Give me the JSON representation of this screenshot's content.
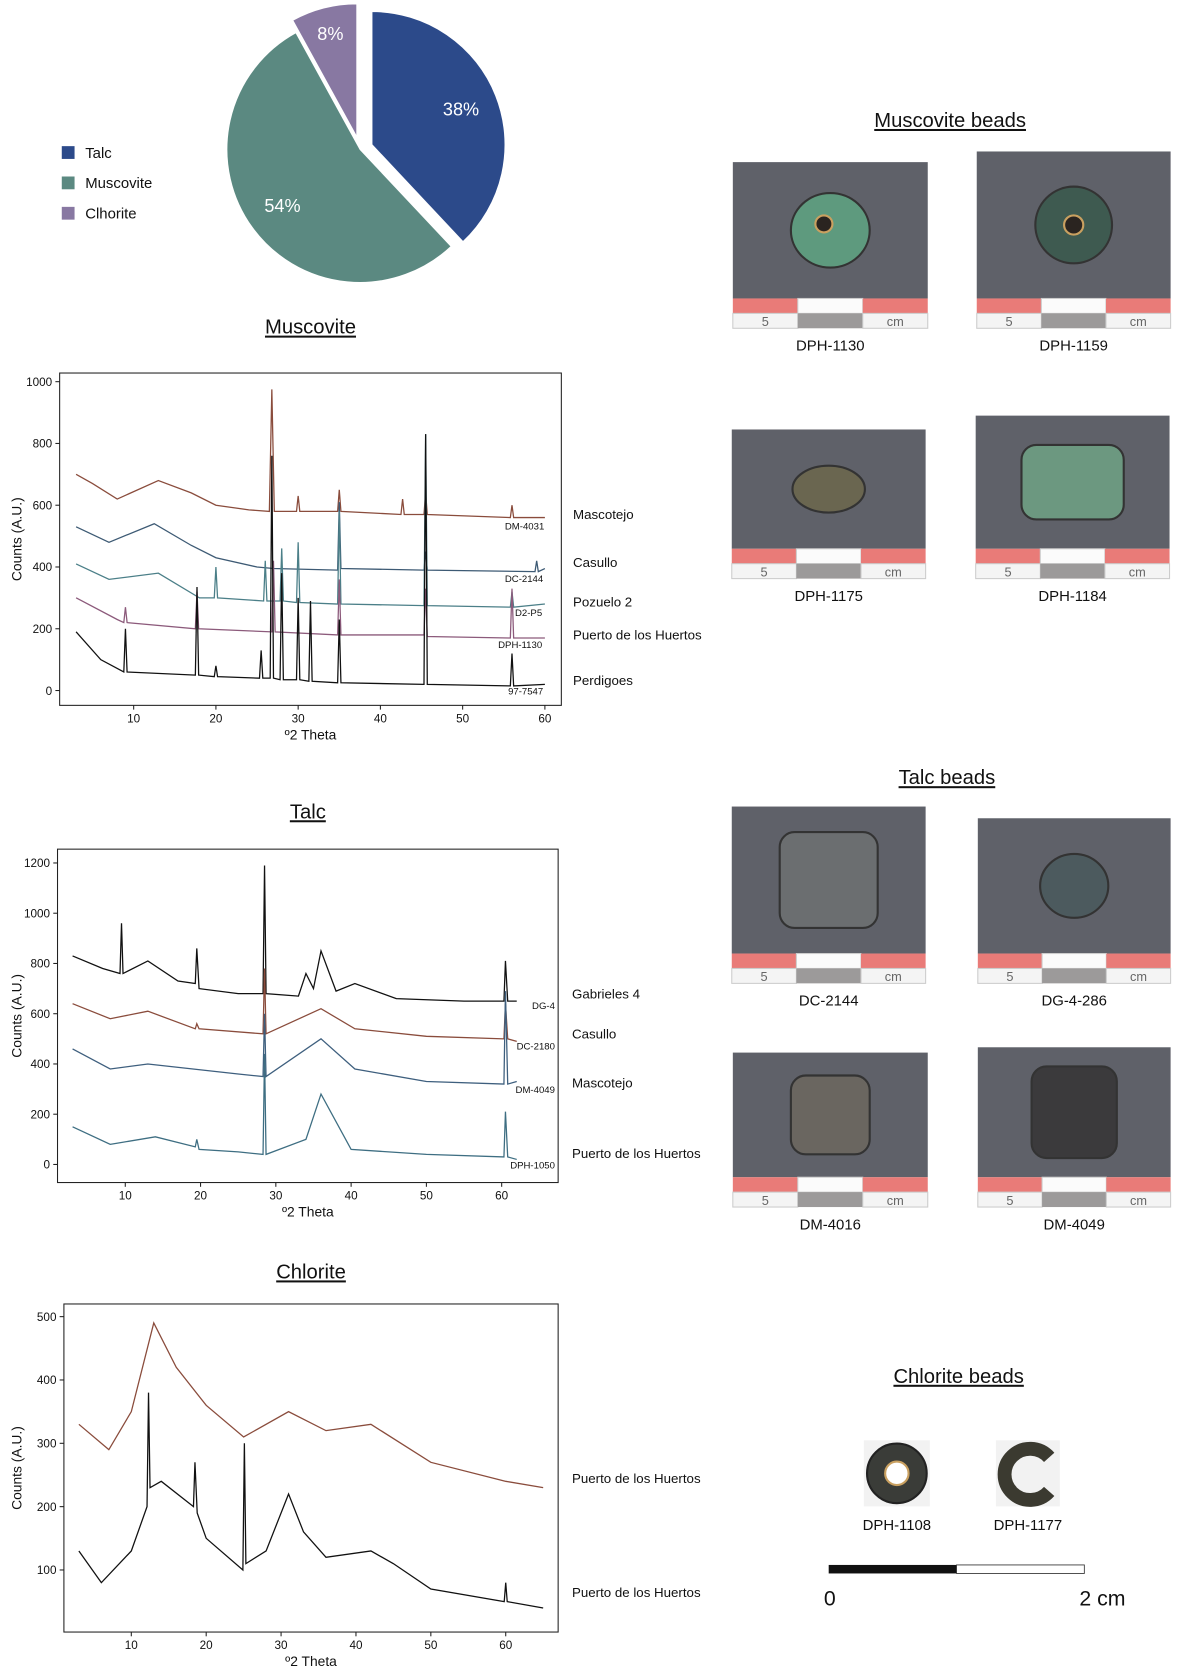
{
  "chart_data": [
    {
      "type": "pie",
      "categories": [
        "Talc",
        "Muscovite",
        "Clhorite"
      ],
      "values": [
        38,
        54,
        8
      ],
      "value_labels": [
        "38%",
        "54%",
        "8%"
      ],
      "colors": [
        "#2c4a8a",
        "#5b8981",
        "#8878a2"
      ],
      "legend": "left"
    },
    {
      "type": "line",
      "title": "Muscovite",
      "xlabel": "º2 Theta",
      "ylabel": "Counts (A.U.)",
      "xlim": [
        1,
        62
      ],
      "ylim": [
        -48,
        1028
      ],
      "xticks": [
        10,
        20,
        30,
        40,
        50,
        60
      ],
      "yticks": [
        0,
        200,
        400,
        600,
        800,
        1000
      ],
      "series": [
        {
          "name": "Mascotejo",
          "sample": "DM-4031",
          "color": "#8a4c3c",
          "x": [
            3,
            5,
            8,
            13,
            17,
            20,
            24,
            26.5,
            26.8,
            27.1,
            29.8,
            30,
            30.2,
            34.8,
            35,
            35.2,
            42.5,
            42.7,
            42.9,
            45.3,
            45.5,
            45.7,
            55.8,
            56,
            56.2,
            60
          ],
          "values": [
            700,
            670,
            620,
            680,
            640,
            600,
            585,
            580,
            975,
            580,
            580,
            630,
            580,
            580,
            650,
            580,
            570,
            620,
            570,
            570,
            640,
            570,
            560,
            600,
            560,
            560
          ]
        },
        {
          "name": "Casullo",
          "sample": "DC-2144",
          "color": "#3d5a74",
          "x": [
            3,
            7,
            12.5,
            17,
            20,
            25,
            27,
            34.8,
            35,
            35.2,
            45.3,
            45.5,
            45.7,
            58.8,
            59,
            59.2,
            60
          ],
          "values": [
            530,
            480,
            540,
            470,
            430,
            400,
            395,
            390,
            610,
            395,
            390,
            450,
            390,
            385,
            420,
            385,
            395
          ]
        },
        {
          "name": "Pozuelo 2",
          "sample": "D2-P5",
          "color": "#4b7f88",
          "x": [
            3,
            7,
            13,
            18,
            19.8,
            20,
            20.2,
            25.8,
            26,
            26.2,
            27.8,
            28,
            28.2,
            29.8,
            30,
            30.2,
            34.8,
            35,
            35.2,
            45.3,
            45.5,
            45.7,
            55.8,
            56,
            56.2,
            60
          ],
          "values": [
            410,
            360,
            380,
            300,
            300,
            400,
            300,
            290,
            420,
            290,
            290,
            460,
            290,
            285,
            480,
            285,
            280,
            580,
            280,
            275,
            830,
            275,
            270,
            320,
            270,
            280
          ]
        },
        {
          "name": "Puerto de los Huertos",
          "sample": "DPH-1130",
          "color": "#8c5a7b",
          "x": [
            3,
            8,
            8.8,
            9,
            9.2,
            17.5,
            17.7,
            17.9,
            26.8,
            27,
            27.2,
            34.8,
            35,
            35.2,
            45.3,
            45.5,
            45.7,
            55.8,
            56,
            56.2,
            60
          ],
          "values": [
            300,
            230,
            220,
            270,
            220,
            200,
            320,
            200,
            190,
            420,
            190,
            180,
            360,
            180,
            180,
            330,
            175,
            170,
            330,
            170,
            170
          ]
        },
        {
          "name": "Perdigoes",
          "sample": "97-7547",
          "color": "#111111",
          "x": [
            3,
            6,
            8.8,
            9,
            9.2,
            17.5,
            17.7,
            17.9,
            19.8,
            20,
            20.2,
            25.3,
            25.5,
            25.7,
            26.6,
            26.8,
            27,
            27.8,
            28,
            28.2,
            29.8,
            30,
            30.2,
            31.3,
            31.5,
            31.7,
            34.8,
            35,
            35.2,
            45.3,
            45.5,
            45.7,
            55.8,
            56,
            56.2,
            60
          ],
          "values": [
            190,
            100,
            60,
            200,
            60,
            50,
            335,
            50,
            45,
            80,
            45,
            40,
            130,
            40,
            40,
            760,
            40,
            35,
            380,
            35,
            35,
            300,
            35,
            30,
            290,
            30,
            25,
            230,
            25,
            20,
            830,
            20,
            15,
            120,
            15,
            20
          ]
        }
      ]
    },
    {
      "type": "line",
      "title": "Talc",
      "xlabel": "º2 Theta",
      "ylabel": "Counts (A.U.)",
      "xlim": [
        1,
        67.5
      ],
      "ylim": [
        -72,
        1255
      ],
      "xticks": [
        10,
        20,
        30,
        40,
        50,
        60
      ],
      "yticks": [
        0,
        200,
        400,
        600,
        800,
        1000,
        1200
      ],
      "series": [
        {
          "name": "Gabrieles 4",
          "sample": "DG-4",
          "color": "#111111",
          "x": [
            3,
            7,
            9.3,
            9.5,
            9.7,
            13,
            17,
            19.3,
            19.5,
            19.8,
            25,
            28.3,
            28.5,
            28.7,
            33,
            34,
            35,
            36,
            38,
            40.5,
            46,
            55,
            60.3,
            60.5,
            60.8,
            62
          ],
          "values": [
            830,
            780,
            760,
            960,
            760,
            810,
            730,
            720,
            860,
            700,
            680,
            680,
            1190,
            680,
            670,
            760,
            700,
            850,
            690,
            720,
            660,
            650,
            650,
            810,
            650,
            650
          ]
        },
        {
          "name": "Casullo",
          "sample": "DC-2180",
          "color": "#8a4c3c",
          "x": [
            3,
            8,
            13,
            19.3,
            19.5,
            19.8,
            28.3,
            28.5,
            28.7,
            36,
            40.5,
            50,
            60.3,
            60.5,
            60.8,
            62
          ],
          "values": [
            640,
            580,
            610,
            540,
            560,
            540,
            520,
            780,
            520,
            620,
            540,
            510,
            500,
            640,
            500,
            490
          ]
        },
        {
          "name": "Mascotejo",
          "sample": "DM-4049",
          "color": "#3e5f7e",
          "x": [
            3,
            8,
            13,
            25,
            28.3,
            28.5,
            28.7,
            36,
            40.5,
            50,
            60.3,
            60.5,
            60.8,
            62
          ],
          "values": [
            460,
            380,
            400,
            360,
            350,
            600,
            350,
            500,
            380,
            330,
            320,
            690,
            320,
            330
          ]
        },
        {
          "name": "Puerto de los Huertos",
          "sample": "DPH-1050",
          "color": "#3e6e82",
          "x": [
            3,
            8,
            14,
            19.3,
            19.5,
            19.8,
            25,
            28.3,
            28.5,
            28.7,
            34,
            36,
            40,
            50,
            60.3,
            60.5,
            60.8,
            62
          ],
          "values": [
            150,
            80,
            110,
            70,
            100,
            60,
            50,
            40,
            440,
            40,
            100,
            280,
            60,
            40,
            30,
            210,
            30,
            20
          ]
        }
      ]
    },
    {
      "type": "line",
      "title": "Chlorite",
      "xlabel": "º2 Theta",
      "ylabel": "Counts (A.U.)",
      "xlim": [
        1,
        67
      ],
      "ylim": [
        2,
        520
      ],
      "xticks": [
        10,
        20,
        30,
        40,
        50,
        60
      ],
      "yticks": [
        100,
        200,
        300,
        400,
        500
      ],
      "series": [
        {
          "name": "Puerto de los Huertos",
          "color": "#8a4c3c",
          "x": [
            3,
            7,
            10,
            13,
            16,
            20,
            25,
            31,
            36,
            42,
            50,
            60,
            65
          ],
          "values": [
            330,
            290,
            350,
            490,
            420,
            360,
            310,
            350,
            320,
            330,
            270,
            240,
            230
          ]
        },
        {
          "name": "Puerto de los Huertos",
          "color": "#111111",
          "x": [
            3,
            6,
            10,
            12.1,
            12.3,
            12.5,
            14,
            18.3,
            18.5,
            18.8,
            20,
            24.9,
            25.1,
            25.3,
            28,
            31,
            33,
            36,
            42,
            45,
            50,
            59.8,
            60,
            60.2,
            65
          ],
          "values": [
            130,
            80,
            130,
            200,
            380,
            230,
            240,
            200,
            270,
            190,
            150,
            100,
            300,
            110,
            130,
            220,
            160,
            120,
            130,
            110,
            70,
            50,
            80,
            50,
            40
          ]
        }
      ]
    }
  ],
  "bead_panels": [
    {
      "title": "Muscovite beads",
      "labels": [
        "DPH-1130",
        "DPH-1159",
        "DPH-1175",
        "DPH-1184"
      ]
    },
    {
      "title": "Talc beads",
      "labels": [
        "DC-2144",
        "DG-4-286",
        "DM-4016",
        "DM-4049"
      ]
    },
    {
      "title": "Chlorite beads",
      "labels": [
        "DPH-1108",
        "DPH-1177"
      ]
    }
  ],
  "photo_scale": {
    "number": "5",
    "unit": "cm"
  },
  "scale_bar": {
    "start": "0",
    "end": "2 cm"
  }
}
